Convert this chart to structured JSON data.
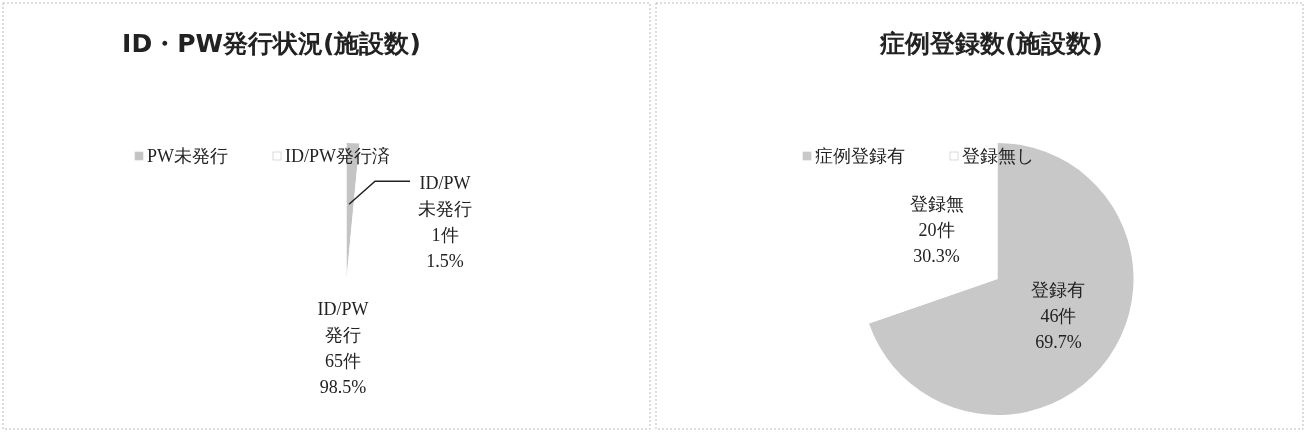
{
  "chart_data": [
    {
      "type": "pie",
      "title": "ID・PW発行状況(施設数)",
      "categories": [
        "PW未発行",
        "ID/PW発行済"
      ],
      "values": [
        1,
        65
      ],
      "colors": [
        "#c4c4c4",
        "#ffffff"
      ],
      "value_labels": [
        "ID/PW\n未発行\n1件\n1.5%",
        "ID/PW\n発行\n65件\n98.5%"
      ],
      "legend": "top"
    },
    {
      "type": "pie",
      "title": "症例登録数(施設数)",
      "categories": [
        "症例登録有",
        "登録無し"
      ],
      "values": [
        46,
        20
      ],
      "colors": [
        "#c8c8c8",
        "#ffffff"
      ],
      "value_labels": [
        "登録有\n46件\n69.7%",
        "登録無\n20件\n30.3%"
      ],
      "legend": "top"
    }
  ]
}
